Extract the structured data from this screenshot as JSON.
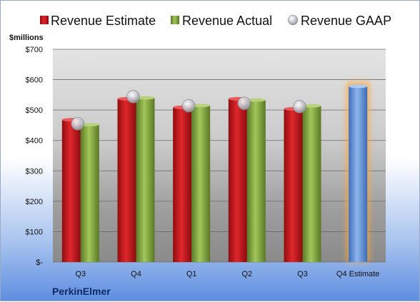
{
  "chart_data": {
    "type": "bar",
    "company": "PerkinElmer",
    "ylabel": "$millions",
    "ylim": [
      0,
      700
    ],
    "yticks": [
      "$-",
      "$100",
      "$200",
      "$300",
      "$400",
      "$500",
      "$600",
      "$700"
    ],
    "categories": [
      "Q3",
      "Q4",
      "Q1",
      "Q2",
      "Q3",
      "Q4 Estimate"
    ],
    "grid": true,
    "legend": "top",
    "series": [
      {
        "name": "Revenue Estimate",
        "values": [
          468,
          537,
          509,
          537,
          504,
          null
        ],
        "color": "#c0161b"
      },
      {
        "name": "Revenue Actual",
        "values": [
          452,
          540,
          515,
          533,
          514,
          null
        ],
        "color": "#7fa33b"
      },
      {
        "name": "Revenue GAAP",
        "values": [
          455,
          544,
          514,
          522,
          511,
          null
        ],
        "color": "#b9bcc3",
        "marker": "circle"
      },
      {
        "name": "",
        "values": [
          null,
          null,
          null,
          null,
          null,
          578
        ],
        "color": "#5b8fd6"
      }
    ]
  }
}
